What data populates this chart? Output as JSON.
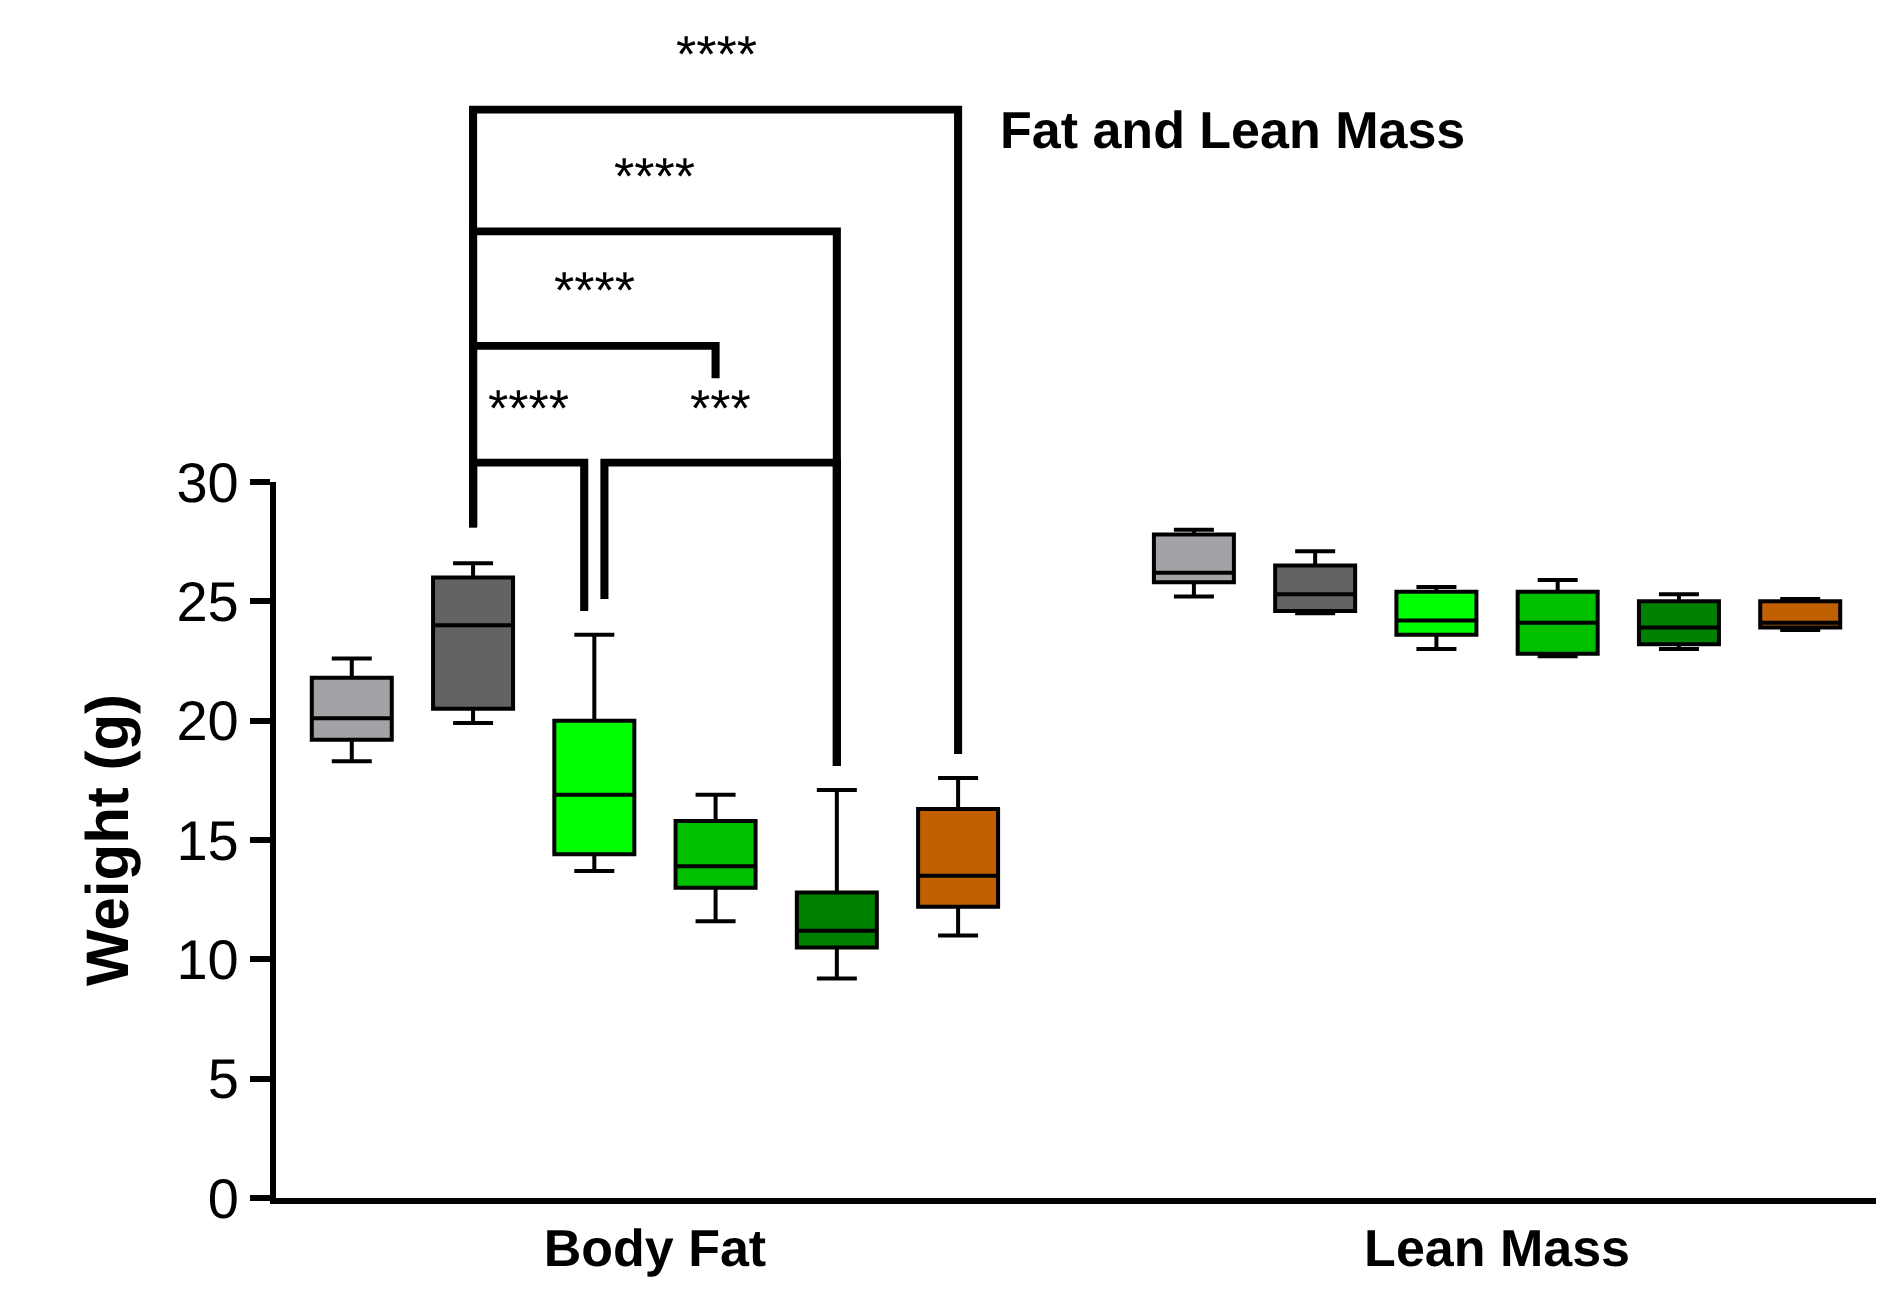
{
  "chart_data": {
    "type": "box",
    "title": "Fat and Lean Mass",
    "ylabel": "Weight (g)",
    "categories": [
      "Body Fat",
      "Lean Mass"
    ],
    "ylim": [
      0,
      30
    ],
    "yticks": [
      0,
      5,
      10,
      15,
      20,
      25,
      30
    ],
    "annotations": [
      "****",
      "****",
      "****",
      "****",
      "***"
    ],
    "series": [
      {
        "color": "#a3a2a6",
        "boxes": [
          {
            "low": 18.3,
            "q1": 19.2,
            "median": 20.1,
            "q3": 21.8,
            "high": 22.6
          },
          {
            "low": 25.2,
            "q1": 25.8,
            "median": 26.2,
            "q3": 27.8,
            "high": 28.0
          }
        ]
      },
      {
        "color": "#636363",
        "boxes": [
          {
            "low": 19.9,
            "q1": 20.5,
            "median": 24.0,
            "q3": 26.0,
            "high": 26.6
          },
          {
            "low": 24.5,
            "q1": 24.6,
            "median": 25.3,
            "q3": 26.5,
            "high": 27.1
          }
        ]
      },
      {
        "color": "#00ff00",
        "boxes": [
          {
            "low": 13.7,
            "q1": 14.4,
            "median": 16.9,
            "q3": 20.0,
            "high": 23.6
          },
          {
            "low": 23.0,
            "q1": 23.6,
            "median": 24.2,
            "q3": 25.4,
            "high": 25.6
          }
        ]
      },
      {
        "color": "#00c000",
        "boxes": [
          {
            "low": 11.6,
            "q1": 13.0,
            "median": 13.9,
            "q3": 15.8,
            "high": 16.9
          },
          {
            "low": 22.7,
            "q1": 22.8,
            "median": 24.1,
            "q3": 25.4,
            "high": 25.9
          }
        ]
      },
      {
        "color": "#008000",
        "boxes": [
          {
            "low": 9.2,
            "q1": 10.5,
            "median": 11.2,
            "q3": 12.8,
            "high": 17.1
          },
          {
            "low": 23.0,
            "q1": 23.2,
            "median": 23.9,
            "q3": 25.0,
            "high": 25.3
          }
        ]
      },
      {
        "color": "#c06000",
        "boxes": [
          {
            "low": 11.0,
            "q1": 12.2,
            "median": 13.5,
            "q3": 16.3,
            "high": 17.6
          },
          {
            "low": 23.8,
            "q1": 23.9,
            "median": 24.1,
            "q3": 25.0,
            "high": 25.1
          }
        ]
      }
    ]
  }
}
